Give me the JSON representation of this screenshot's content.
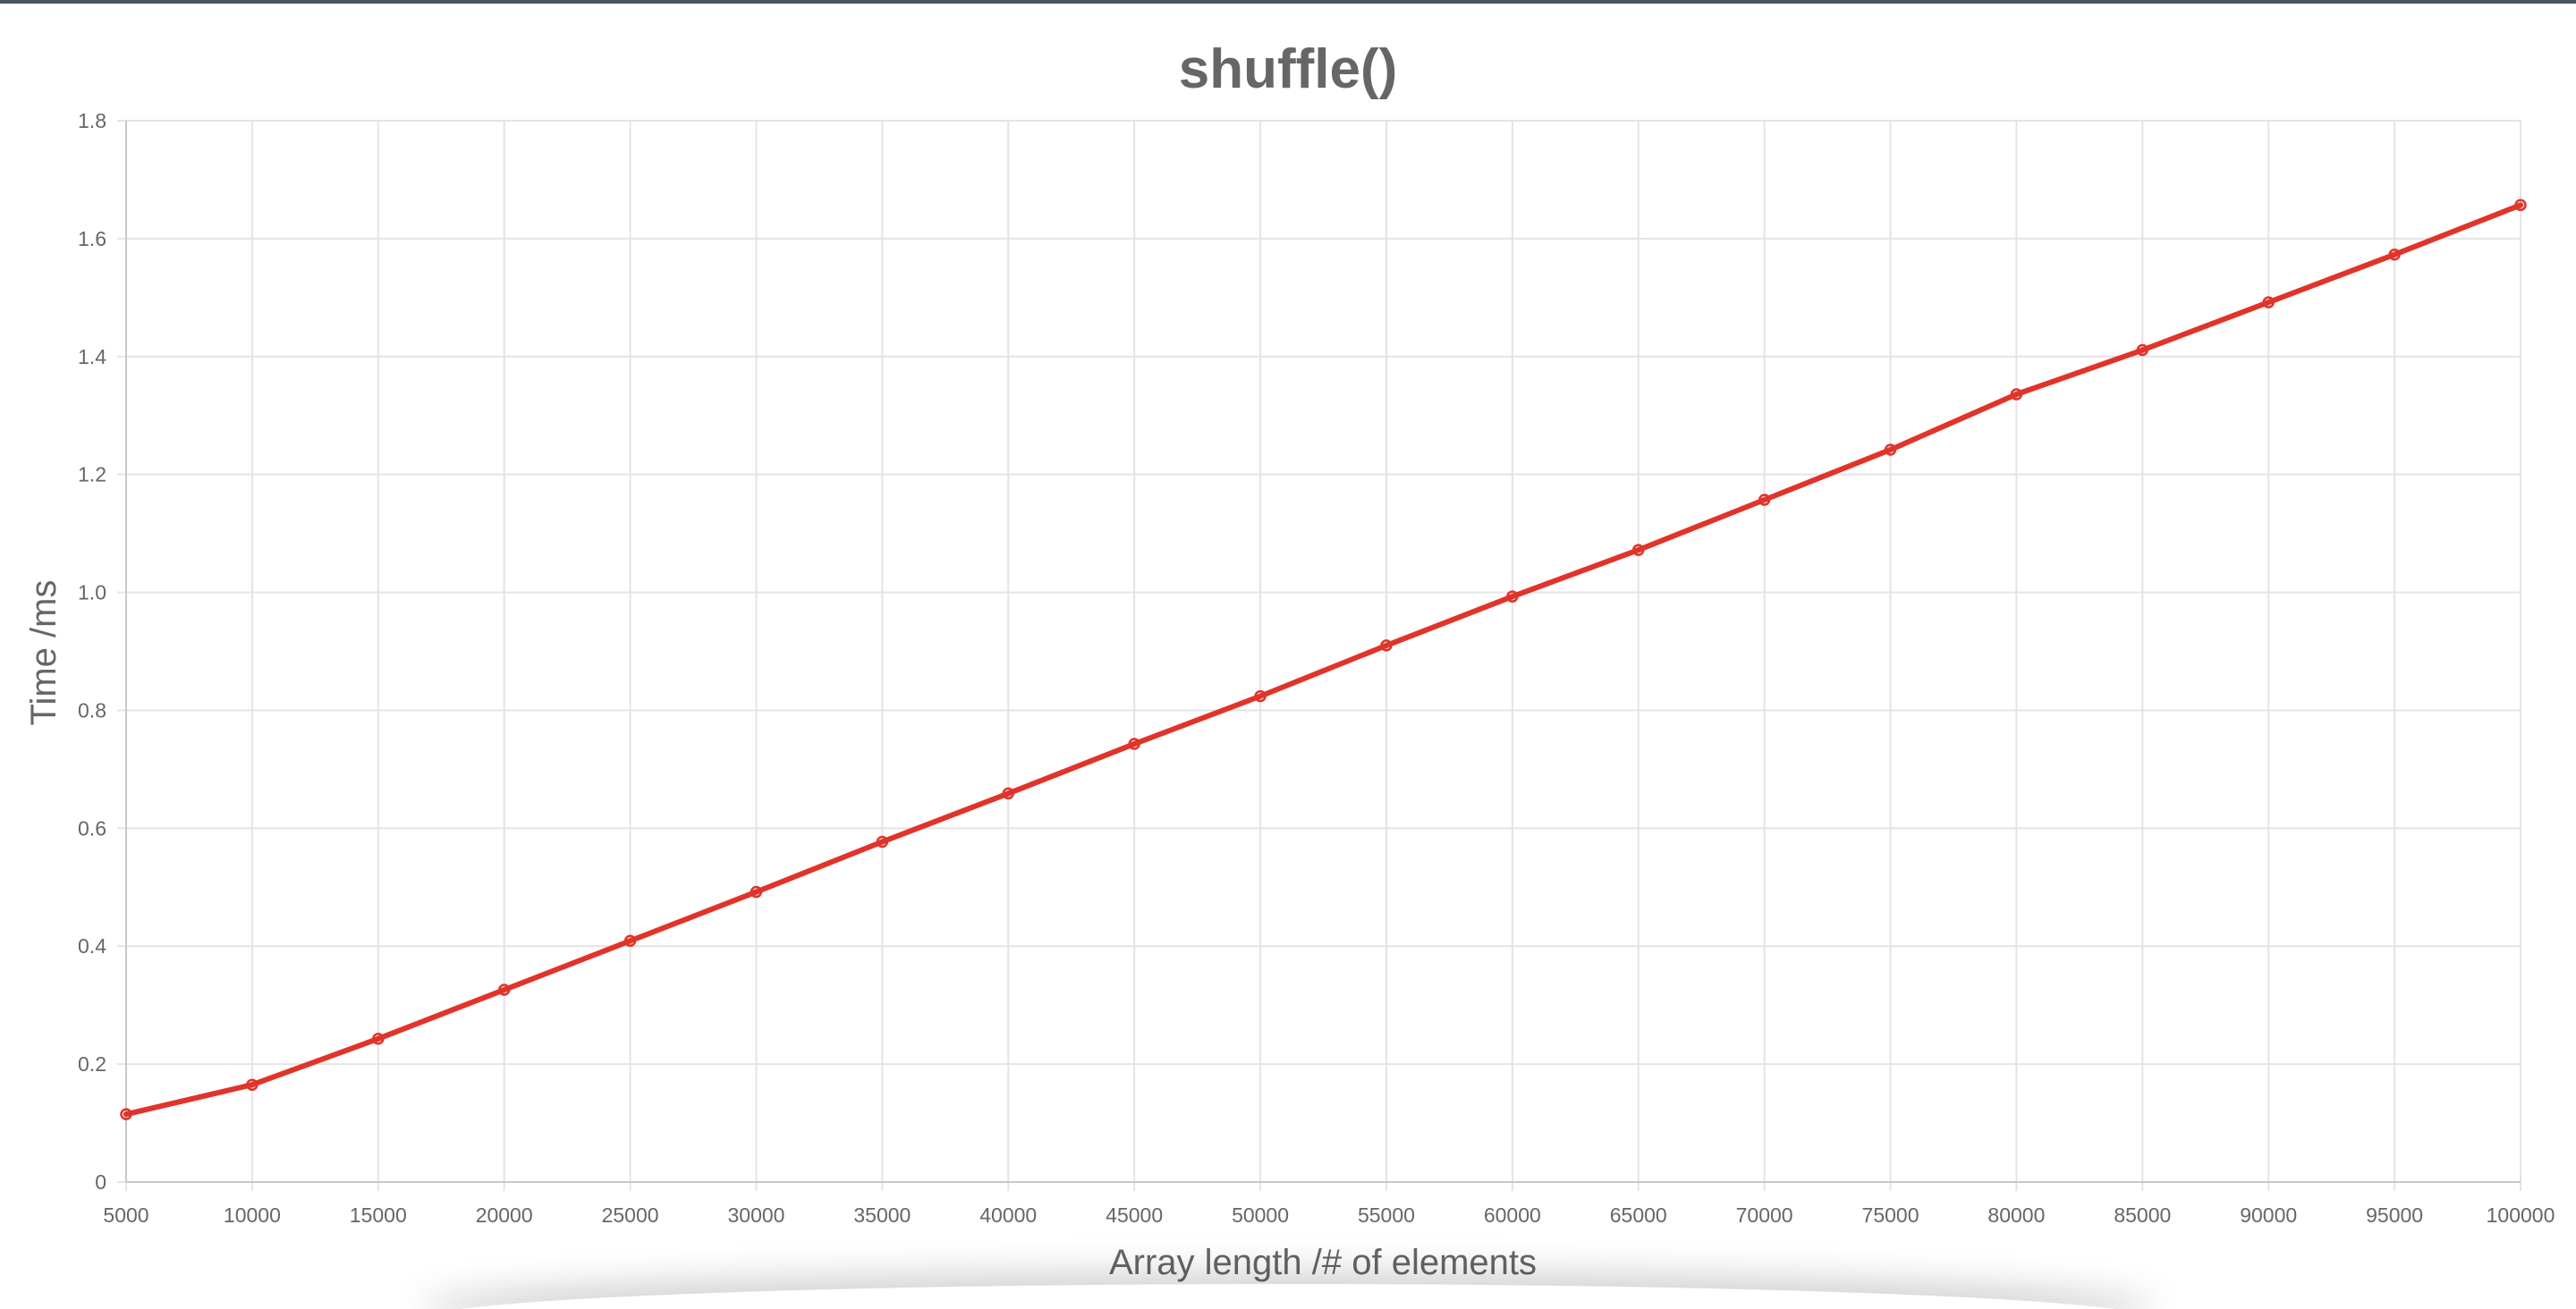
{
  "colors": {
    "series": "#e0342b",
    "grid": "#e4e4e4",
    "axis": "#c8c8c8",
    "text": "#666666",
    "frame": "#4b5560"
  },
  "chart_data": {
    "type": "line",
    "title": "shuffle()",
    "xlabel": "Array length /# of elements",
    "ylabel": "Time /ms",
    "x": [
      5000,
      10000,
      15000,
      20000,
      25000,
      30000,
      35000,
      40000,
      45000,
      50000,
      55000,
      60000,
      65000,
      70000,
      75000,
      80000,
      85000,
      90000,
      95000,
      100000
    ],
    "x_tick_labels": [
      "5000",
      "10000",
      "15000",
      "20000",
      "25000",
      "30000",
      "35000",
      "40000",
      "45000",
      "50000",
      "55000",
      "60000",
      "65000",
      "70000",
      "75000",
      "80000",
      "85000",
      "90000",
      "95000",
      "100000"
    ],
    "y_ticks": [
      0,
      0.2,
      0.4,
      0.6,
      0.8,
      1.0,
      1.2,
      1.4,
      1.6,
      1.8
    ],
    "y_tick_labels": [
      "0",
      "0.2",
      "0.4",
      "0.6",
      "0.8",
      "1.0",
      "1.2",
      "1.4",
      "1.6",
      "1.8"
    ],
    "ylim": [
      0,
      1.8
    ],
    "grid": true,
    "legend": "none",
    "series": [
      {
        "values": [
          0.115,
          0.165,
          0.243,
          0.326,
          0.409,
          0.492,
          0.577,
          0.659,
          0.743,
          0.824,
          0.91,
          0.993,
          1.072,
          1.157,
          1.242,
          1.336,
          1.411,
          1.492,
          1.573,
          1.657
        ]
      }
    ]
  }
}
